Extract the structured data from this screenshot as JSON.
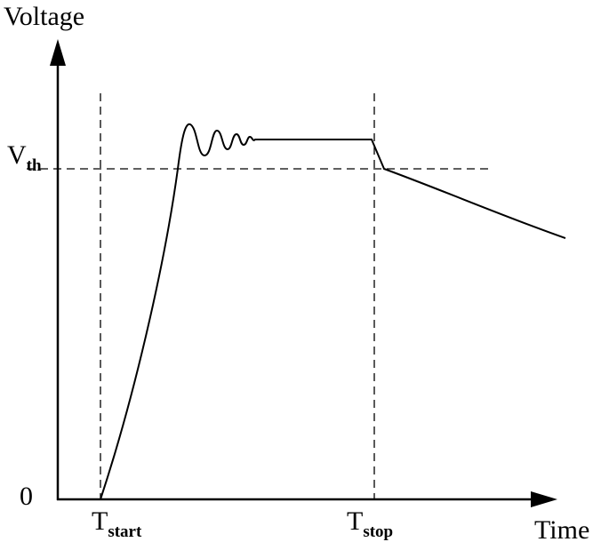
{
  "axes": {
    "y_label": "Voltage",
    "x_label": "Time"
  },
  "labels": {
    "origin": "0",
    "threshold": {
      "main": "V",
      "sub": "th"
    },
    "t_start": {
      "main": "T",
      "sub": "start"
    },
    "t_stop": {
      "main": "T",
      "sub": "stop"
    }
  }
}
